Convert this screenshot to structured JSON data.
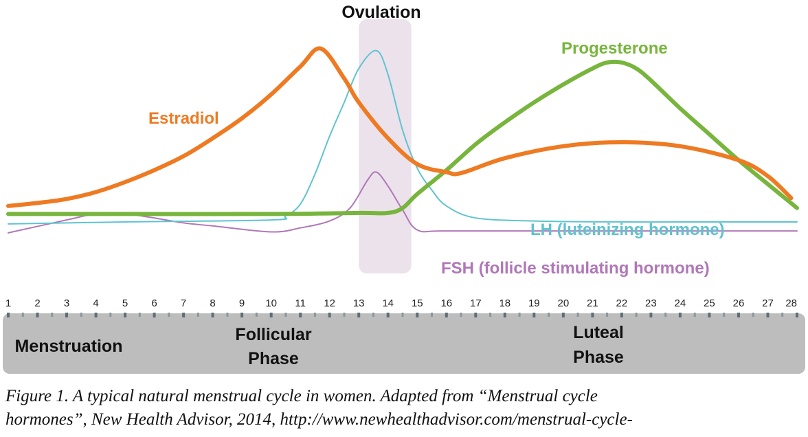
{
  "chart_data": {
    "type": "line",
    "title": "",
    "xlabel": "",
    "ylabel": "",
    "xlim": [
      1,
      28
    ],
    "ylim": [
      0,
      100
    ],
    "grid": false,
    "x_ticks": [
      "1",
      "2",
      "3",
      "4",
      "5",
      "6",
      "7",
      "8",
      "9",
      "10",
      "11",
      "12",
      "13",
      "14",
      "15",
      "16",
      "17",
      "18",
      "19",
      "20",
      "21",
      "22",
      "23",
      "24",
      "25",
      "26",
      "27",
      "28"
    ],
    "ovulation": {
      "label": "Ovulation",
      "x_start": 13,
      "x_end": 14.8
    },
    "phases": [
      {
        "label": "Menstruation",
        "line2": ""
      },
      {
        "label": "Follicular",
        "line2": "Phase"
      },
      {
        "label": "Luteal",
        "line2": "Phase"
      }
    ],
    "series": [
      {
        "name": "Estradiol",
        "color": "#ee7a22",
        "x": [
          1,
          2,
          3,
          4,
          5,
          6,
          7,
          8,
          9,
          10,
          11,
          11.7,
          12.5,
          13,
          14,
          15,
          16,
          16.5,
          18,
          20,
          22,
          24,
          26,
          27,
          27.8
        ],
        "y": [
          18,
          19.5,
          21.5,
          25,
          30,
          36,
          43,
          52,
          62,
          74,
          88,
          97,
          82,
          70,
          52,
          39,
          35,
          34.5,
          42,
          48,
          50,
          48,
          41,
          33,
          22
        ]
      },
      {
        "name": "LH (luteinizing hormone)",
        "color": "#5fc3cf",
        "x": [
          1,
          5,
          10,
          10.5,
          11,
          11.5,
          12,
          12.5,
          13,
          13.6,
          14,
          14.5,
          15,
          15.5,
          16,
          17,
          19,
          22,
          25,
          28
        ],
        "y": [
          9,
          10,
          11,
          13,
          19,
          34,
          53,
          70,
          87,
          96,
          84,
          56,
          37,
          26,
          18,
          12,
          10.5,
          10,
          10,
          10
        ]
      },
      {
        "name": "FSH (follicle stimulating hormone)",
        "color": "#b077b8",
        "x": [
          1,
          3,
          4,
          5,
          6,
          7,
          8,
          10,
          11,
          12,
          12.7,
          13.3,
          13.6,
          14,
          14.5,
          15,
          16,
          20,
          24,
          28
        ],
        "y": [
          4.5,
          11,
          14,
          14,
          12,
          9.5,
          8,
          5,
          7,
          10.5,
          17,
          31,
          35,
          28,
          16,
          6,
          5.5,
          5.5,
          5.5,
          5.5
        ]
      },
      {
        "name": "Progesterone",
        "color": "#77b53c",
        "x": [
          1,
          5,
          10,
          13,
          14,
          14.5,
          15,
          16,
          17,
          18,
          19,
          20,
          21,
          21.5,
          22,
          22.5,
          23,
          24,
          25,
          26,
          27,
          28
        ],
        "y": [
          14,
          14,
          14,
          14.5,
          14.5,
          17,
          24,
          36,
          49,
          60,
          70,
          79,
          87,
          90,
          90,
          87,
          81,
          67,
          54,
          41,
          29,
          17
        ]
      }
    ]
  },
  "caption": {
    "line1": "Figure 1. A typical natural menstrual cycle in women. Adapted from “Menstrual cycle",
    "line2": "hormones”, New Health Advisor, 2014, http://www.newhealthadvisor.com/menstrual-cycle-"
  }
}
